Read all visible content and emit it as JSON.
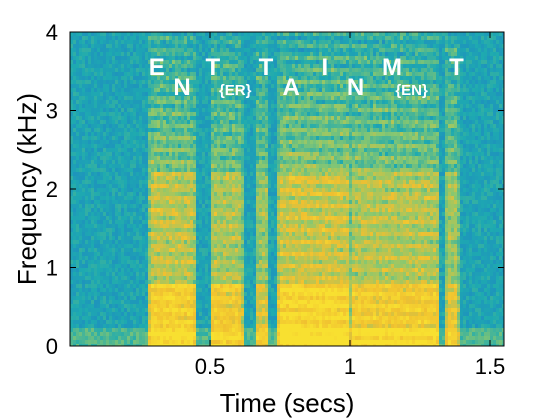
{
  "chart_data": {
    "type": "heatmap",
    "title": "",
    "xlabel": "Time (secs)",
    "ylabel": "Frequency (kHz)",
    "xlim": [
      0.0,
      1.55
    ],
    "ylim": [
      0,
      4
    ],
    "xticks": [
      0.5,
      1,
      1.5
    ],
    "xtick_labels": [
      "0.5",
      "1",
      "1.5"
    ],
    "yticks": [
      0,
      1,
      2,
      3,
      4
    ],
    "ytick_labels": [
      "0",
      "1",
      "2",
      "3",
      "4"
    ],
    "colormap": [
      "#1a4fa8",
      "#1f80c8",
      "#1eaab0",
      "#8cc86e",
      "#f0c030",
      "#f8e030"
    ],
    "background_color": "#2a8fc8",
    "speech_segments": [
      {
        "start": 0.28,
        "end": 0.45,
        "intensity": 0.85
      },
      {
        "start": 0.5,
        "end": 0.62,
        "intensity": 0.75
      },
      {
        "start": 0.66,
        "end": 0.71,
        "intensity": 0.6
      },
      {
        "start": 0.74,
        "end": 1.0,
        "intensity": 0.95
      },
      {
        "start": 1.0,
        "end": 1.32,
        "intensity": 0.8
      },
      {
        "start": 1.34,
        "end": 1.39,
        "intensity": 0.7
      }
    ],
    "annotations": [
      {
        "text": "E",
        "t": 0.31,
        "khz": 3.45,
        "size": 24
      },
      {
        "text": "N",
        "t": 0.4,
        "khz": 3.2,
        "size": 24
      },
      {
        "text": "T",
        "t": 0.51,
        "khz": 3.45,
        "size": 24
      },
      {
        "text": "{ER}",
        "t": 0.59,
        "khz": 3.2,
        "size": 15
      },
      {
        "text": "T",
        "t": 0.7,
        "khz": 3.45,
        "size": 24
      },
      {
        "text": "A",
        "t": 0.79,
        "khz": 3.2,
        "size": 24
      },
      {
        "text": "I",
        "t": 0.91,
        "khz": 3.45,
        "size": 24
      },
      {
        "text": "N",
        "t": 1.02,
        "khz": 3.2,
        "size": 24
      },
      {
        "text": "M",
        "t": 1.15,
        "khz": 3.45,
        "size": 24
      },
      {
        "text": "{EN}",
        "t": 1.22,
        "khz": 3.2,
        "size": 15
      },
      {
        "text": "T",
        "t": 1.38,
        "khz": 3.45,
        "size": 24
      }
    ]
  }
}
